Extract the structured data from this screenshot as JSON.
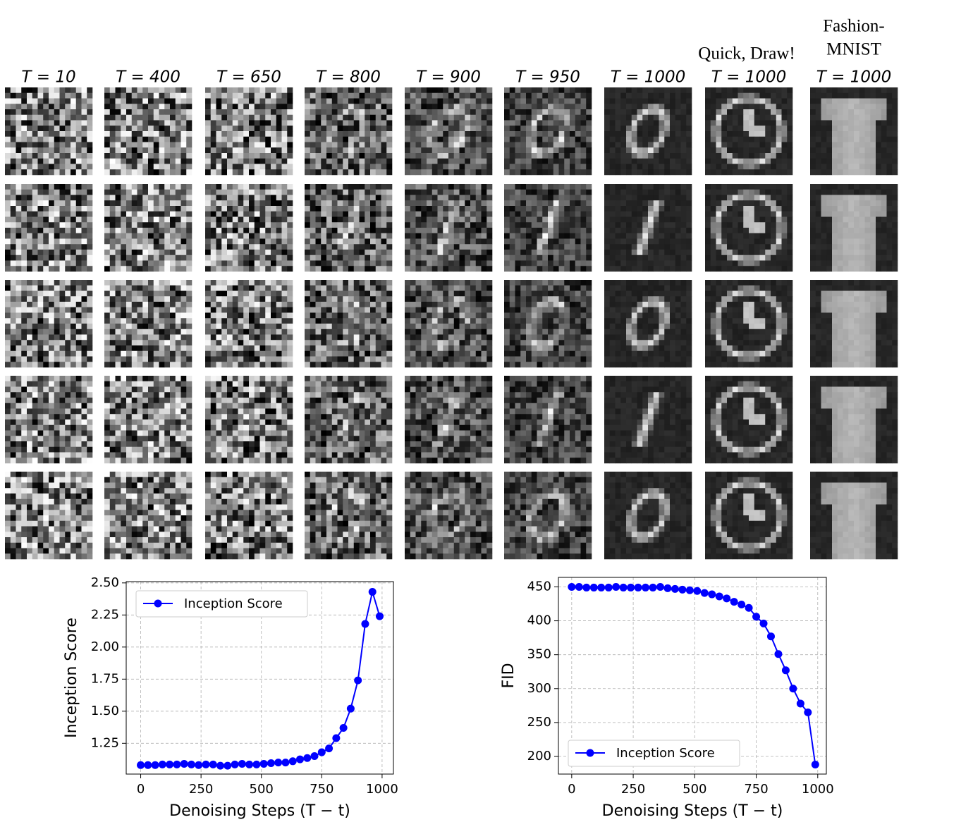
{
  "samples": {
    "columns": [
      {
        "label": "T = 10"
      },
      {
        "label": "T = 400"
      },
      {
        "label": "T = 650"
      },
      {
        "label": "T = 800"
      },
      {
        "label": "T = 900"
      },
      {
        "label": "T = 950"
      },
      {
        "label": "T = 1000"
      },
      {
        "dataset": "Quick, Draw!",
        "label": "T = 1000"
      },
      {
        "dataset": [
          "Fashion-",
          "MNIST"
        ],
        "label": "T = 1000"
      }
    ]
  },
  "chart_data": [
    {
      "type": "line",
      "xlabel": "Denoising Steps (T − t)",
      "ylabel": "Inception Score",
      "x": [
        0,
        30,
        60,
        90,
        120,
        150,
        180,
        210,
        240,
        270,
        300,
        330,
        360,
        390,
        420,
        450,
        480,
        510,
        540,
        570,
        600,
        630,
        660,
        690,
        720,
        750,
        780,
        810,
        840,
        870,
        900,
        930,
        960,
        990
      ],
      "series": [
        {
          "name": "Inception Score",
          "color": "#0000ff",
          "values": [
            1.08,
            1.08,
            1.08,
            1.085,
            1.085,
            1.085,
            1.09,
            1.085,
            1.08,
            1.085,
            1.085,
            1.075,
            1.075,
            1.085,
            1.09,
            1.085,
            1.085,
            1.09,
            1.095,
            1.1,
            1.1,
            1.11,
            1.125,
            1.135,
            1.15,
            1.18,
            1.21,
            1.29,
            1.37,
            1.52,
            1.74,
            2.18,
            2.43,
            2.24
          ]
        }
      ],
      "xlim": [
        -60,
        1047
      ],
      "ylim": [
        1.01,
        2.51
      ],
      "xticks": [
        0,
        250,
        500,
        750,
        1000
      ],
      "yticks": [
        {
          "value": 1.25,
          "label": "1.25"
        },
        {
          "value": 1.5,
          "label": "1.50"
        },
        {
          "value": 1.75,
          "label": "1.75"
        },
        {
          "value": 2.0,
          "label": "2.00"
        },
        {
          "value": 2.25,
          "label": "2.25"
        },
        {
          "value": 2.5,
          "label": "2.50"
        }
      ],
      "grid": true,
      "legend": "upper left"
    },
    {
      "type": "line",
      "xlabel": "Denoising Steps (T − t)",
      "ylabel": "FID",
      "x": [
        0,
        30,
        60,
        90,
        120,
        150,
        180,
        210,
        240,
        270,
        300,
        330,
        360,
        390,
        420,
        450,
        480,
        510,
        540,
        570,
        600,
        630,
        660,
        690,
        720,
        750,
        780,
        810,
        840,
        870,
        900,
        930,
        960,
        990
      ],
      "series": [
        {
          "name": "Inception Score",
          "color": "#0000ff",
          "values": [
            450,
            450,
            449,
            449,
            449,
            449,
            450,
            449,
            449,
            449,
            449,
            449,
            450,
            448,
            447,
            446,
            445,
            444,
            441,
            439,
            436,
            433,
            428,
            424,
            419,
            406,
            396,
            377,
            351,
            327,
            300,
            278,
            265,
            188
          ]
        }
      ],
      "xlim": [
        -54,
        1035
      ],
      "ylim": [
        174,
        464
      ],
      "xticks": [
        0,
        250,
        500,
        750,
        1000
      ],
      "yticks": [
        200,
        250,
        300,
        350,
        400,
        450
      ],
      "grid": true,
      "legend": "lower left"
    }
  ]
}
